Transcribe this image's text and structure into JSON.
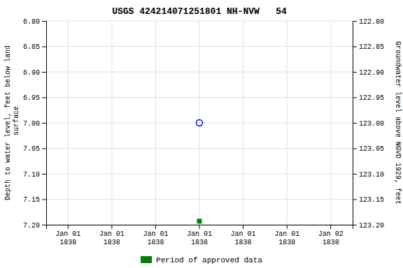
{
  "chart_data": {
    "type": "scatter",
    "title": "USGS 424214071251801 NH-NVW   54",
    "ylabel": "Depth to water level, feet below land\n surface",
    "y2label": "Groundwater level above NGVD 1929, feet",
    "categories": [
      "Jan 01\n1838",
      "Jan 01\n1838",
      "Jan 01\n1838",
      "Jan 01\n1838",
      "Jan 01\n1838",
      "Jan 01\n1838",
      "Jan 02\n1838"
    ],
    "series": [
      {
        "color": "blue",
        "marker": "circle",
        "values": [
          null,
          null,
          null,
          7.0,
          null,
          null,
          null
        ]
      },
      {
        "name": "Period of approved data",
        "color": "#008000",
        "marker": "square",
        "values": [
          null,
          null,
          null,
          7.193,
          null,
          null,
          null
        ]
      }
    ],
    "ylim": [
      7.2,
      6.8
    ],
    "yticks": [
      {
        "value": 6.8,
        "label": "6.80"
      },
      6.85,
      {
        "value": 6.9,
        "label": "6.90"
      },
      6.95,
      {
        "value": 7.0,
        "label": "7.00"
      },
      7.05,
      {
        "value": 7.1,
        "label": "7.10"
      },
      7.15,
      {
        "value": 7.2,
        "label": "7.20"
      }
    ],
    "y2lim": [
      123.2,
      122.8
    ],
    "y2ticks": [
      {
        "value": 122.8,
        "label": "122.80"
      },
      122.85,
      {
        "value": 122.9,
        "label": "122.90"
      },
      122.95,
      {
        "value": 123.0,
        "label": "123.00"
      },
      123.05,
      {
        "value": 123.1,
        "label": "123.10"
      },
      123.15,
      {
        "value": 123.2,
        "label": "123.20"
      }
    ],
    "grid": true,
    "legend": "bottom"
  }
}
